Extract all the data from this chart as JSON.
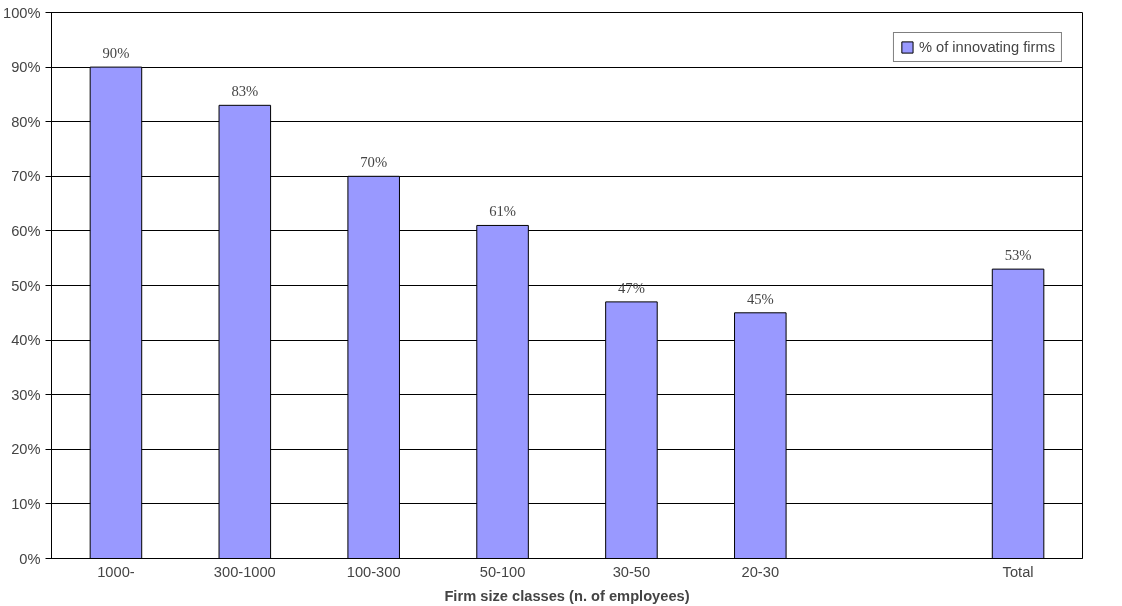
{
  "chart_data": {
    "type": "bar",
    "xlabel": "Firm size classes (n. of employees)",
    "categories": [
      "1000-",
      "300-1000",
      "100-300",
      "50-100",
      "30-50",
      "20-30",
      null,
      "Total"
    ],
    "series": [
      {
        "name": "% of innovating firms",
        "color": "#9999ff",
        "values": [
          90,
          83,
          70,
          61,
          47,
          45,
          null,
          53
        ],
        "value_labels": [
          "90%",
          "83%",
          "70%",
          "61%",
          "47%",
          "45%",
          null,
          "53%"
        ]
      }
    ],
    "ylim": [
      0,
      100
    ],
    "yticks": [
      {
        "value": 0,
        "label": "0%"
      },
      {
        "value": 10,
        "label": "10%"
      },
      {
        "value": 20,
        "label": "20%"
      },
      {
        "value": 30,
        "label": "30%"
      },
      {
        "value": 40,
        "label": "40%"
      },
      {
        "value": 50,
        "label": "50%"
      },
      {
        "value": 60,
        "label": "60%"
      },
      {
        "value": 70,
        "label": "70%"
      },
      {
        "value": 80,
        "label": "80%"
      },
      {
        "value": 90,
        "label": "90%"
      },
      {
        "value": 100,
        "label": "100%"
      }
    ],
    "grid": "y",
    "legend": "top right"
  }
}
